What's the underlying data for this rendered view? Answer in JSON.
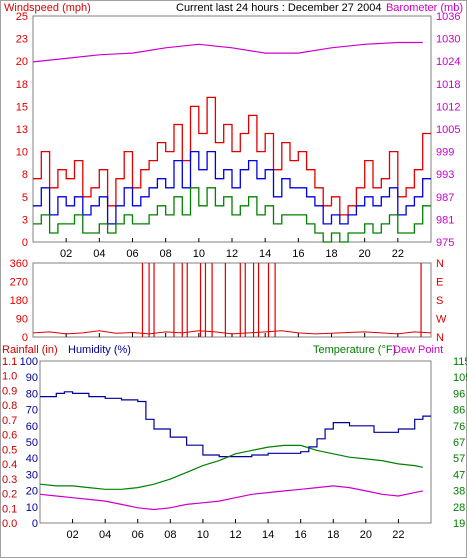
{
  "colors": {
    "windspeed": "#e00000",
    "gust": "#0000e0",
    "avg_wind": "#008000",
    "barometer": "#cc00cc",
    "direction": "#e00000",
    "rainfall": "#cc0000",
    "humidity": "#000099",
    "temperature": "#008000",
    "dew_point": "#cc00cc",
    "panel_bg": "#ffffff",
    "axis": "#000000",
    "frame": "#808080"
  },
  "chart_data": [
    {
      "type": "line",
      "title": "Current last 24 hours : December 27 2004",
      "ylabel_left": "Windspeed (mph)",
      "ylabel_right": "Barometer (mb)",
      "x_ticks": [
        "02",
        "04",
        "06",
        "08",
        "10",
        "12",
        "14",
        "16",
        "18",
        "20",
        "22"
      ],
      "xlim": [
        0,
        24
      ],
      "ylim_left": [
        0,
        25
      ],
      "ylim_right": [
        975,
        1039
      ],
      "y_ticks_left": [
        "0",
        "3",
        "5",
        "8",
        "10",
        "13",
        "15",
        "18",
        "20",
        "23",
        "25"
      ],
      "y_ticks_right": [
        "975",
        "981",
        "987",
        "993",
        "999",
        "1005",
        "1012",
        "1018",
        "1024",
        "1030",
        "1036"
      ],
      "series": [
        {
          "key": "windspeed",
          "x": [
            0,
            0.5,
            1,
            1.5,
            2,
            2.5,
            3,
            3.5,
            4,
            4.5,
            5,
            5.5,
            6,
            6.5,
            7,
            7.5,
            8,
            8.5,
            9,
            9.5,
            10,
            10.5,
            11,
            11.5,
            12,
            12.5,
            13,
            13.5,
            14,
            14.5,
            15,
            15.5,
            16,
            16.5,
            17,
            17.5,
            18,
            18.5,
            19,
            19.5,
            20,
            20.5,
            21,
            21.5,
            22,
            22.5,
            23,
            23.5
          ],
          "values": [
            7,
            10,
            6,
            8,
            7,
            9,
            5,
            6,
            8,
            4,
            7,
            10,
            6,
            8,
            9,
            11,
            10,
            13,
            9,
            15,
            12,
            16,
            11,
            13,
            10,
            12,
            14,
            10,
            12,
            8,
            11,
            9,
            10,
            8,
            6,
            4,
            5,
            3,
            4,
            6,
            9,
            6,
            7,
            10,
            5,
            6,
            8,
            12
          ]
        },
        {
          "key": "gust",
          "x": [
            0,
            0.5,
            1,
            1.5,
            2,
            2.5,
            3,
            3.5,
            4,
            4.5,
            5,
            5.5,
            6,
            6.5,
            7,
            7.5,
            8,
            8.5,
            9,
            9.5,
            10,
            10.5,
            11,
            11.5,
            12,
            12.5,
            13,
            13.5,
            14,
            14.5,
            15,
            15.5,
            16,
            16.5,
            17,
            17.5,
            18,
            18.5,
            19,
            19.5,
            20,
            20.5,
            21,
            21.5,
            22,
            22.5,
            23,
            23.5
          ],
          "values": [
            4,
            6,
            3,
            5,
            4,
            5,
            3,
            4,
            5,
            2,
            4,
            6,
            4,
            5,
            6,
            7,
            6,
            9,
            6,
            10,
            8,
            10,
            7,
            8,
            6,
            8,
            9,
            7,
            8,
            5,
            7,
            6,
            6,
            5,
            4,
            2,
            3,
            2,
            3,
            4,
            5,
            4,
            5,
            6,
            3,
            4,
            5,
            7
          ]
        },
        {
          "key": "avg_wind",
          "x": [
            0,
            0.5,
            1,
            1.5,
            2,
            2.5,
            3,
            3.5,
            4,
            4.5,
            5,
            5.5,
            6,
            6.5,
            7,
            7.5,
            8,
            8.5,
            9,
            9.5,
            10,
            10.5,
            11,
            11.5,
            12,
            12.5,
            13,
            13.5,
            14,
            14.5,
            15,
            15.5,
            16,
            16.5,
            17,
            17.5,
            18,
            18.5,
            19,
            19.5,
            20,
            20.5,
            21,
            21.5,
            22,
            22.5,
            23,
            23.5
          ],
          "values": [
            2,
            3,
            1,
            2,
            2,
            3,
            1,
            1,
            2,
            1,
            2,
            3,
            2,
            2,
            3,
            4,
            3,
            5,
            3,
            6,
            4,
            6,
            4,
            5,
            3,
            4,
            5,
            3,
            4,
            2,
            3,
            3,
            3,
            2,
            1,
            0,
            1,
            0,
            1,
            1,
            2,
            1,
            2,
            3,
            1,
            1,
            2,
            4
          ]
        },
        {
          "key": "barometer",
          "x": [
            0,
            2,
            4,
            6,
            8,
            10,
            12,
            14,
            16,
            18,
            20,
            22,
            23.5
          ],
          "values": [
            1026,
            1027,
            1028,
            1028.5,
            1030,
            1031,
            1030,
            1028.5,
            1028.5,
            1030,
            1031,
            1031.5,
            1031.5
          ]
        }
      ]
    },
    {
      "type": "bar",
      "ylabel_left": "",
      "x_ticks": [
        "02",
        "04",
        "06",
        "08",
        "10",
        "12",
        "14",
        "16",
        "18",
        "20",
        "22"
      ],
      "xlim": [
        0,
        24
      ],
      "ylim": [
        0,
        360
      ],
      "y_ticks_left": [
        "0",
        "90",
        "180",
        "270",
        "360"
      ],
      "y_ticks_right": [
        "N",
        "W",
        "S",
        "E",
        "N"
      ],
      "series": [
        {
          "key": "direction",
          "x": [
            6.6,
            7.0,
            7.3,
            8.5,
            9.0,
            9.3,
            10.1,
            10.4,
            10.8,
            11.6,
            12.5,
            12.8,
            13.3,
            13.6,
            14.2,
            14.6,
            23.4
          ],
          "values": [
            360,
            360,
            360,
            360,
            360,
            360,
            360,
            360,
            360,
            360,
            360,
            360,
            360,
            360,
            360,
            360,
            360
          ]
        },
        {
          "key": "direction_baseline",
          "x": [
            0,
            1,
            2,
            3,
            4,
            5,
            6,
            7,
            8,
            9,
            10,
            11,
            12,
            13,
            14,
            15,
            16,
            17,
            18,
            19,
            20,
            21,
            22,
            23,
            24
          ],
          "values": [
            20,
            25,
            15,
            20,
            30,
            18,
            22,
            15,
            25,
            20,
            30,
            25,
            15,
            20,
            25,
            30,
            20,
            15,
            18,
            22,
            25,
            20,
            15,
            25,
            20
          ]
        }
      ]
    },
    {
      "type": "line",
      "ylabel_left": "Rainfall (in)",
      "ylabel_left2": "Humidity (%)",
      "ylabel_right": "Temperature (°F)",
      "ylabel_right2": "Dew Point",
      "x_ticks": [
        "02",
        "04",
        "06",
        "08",
        "10",
        "12",
        "14",
        "16",
        "18",
        "20",
        "22"
      ],
      "xlim": [
        0,
        24
      ],
      "ylim_humidity": [
        0,
        100
      ],
      "ylim_temperature": [
        19,
        115
      ],
      "y_ticks_rain": [
        "0.0",
        "0.1",
        "0.2",
        "0.3",
        "0.4",
        "0.5",
        "0.6",
        "0.7",
        "0.8",
        "0.9",
        "1.0",
        "1.1"
      ],
      "y_ticks_humidity": [
        "0",
        "10",
        "20",
        "30",
        "40",
        "50",
        "60",
        "70",
        "80",
        "90",
        "100"
      ],
      "y_ticks_temperature": [
        "19",
        "28",
        "38",
        "47",
        "57",
        "67",
        "76",
        "86",
        "96",
        "105",
        "115"
      ],
      "series": [
        {
          "key": "humidity",
          "x": [
            0,
            1,
            1.5,
            2,
            3,
            4,
            5,
            6,
            6.5,
            7,
            8,
            9,
            10,
            11,
            12,
            13,
            14,
            15,
            16,
            16.5,
            17,
            17.5,
            18,
            19,
            20,
            20.5,
            21,
            22,
            23,
            23.5
          ],
          "values": [
            78,
            80,
            81,
            80,
            78,
            77,
            76,
            75,
            64,
            58,
            53,
            48,
            42,
            41,
            41,
            42,
            43,
            43,
            44,
            47,
            52,
            58,
            62,
            60,
            60,
            56,
            56,
            58,
            64,
            66
          ]
        },
        {
          "key": "temperature",
          "x": [
            0,
            1,
            2,
            3,
            4,
            5,
            6,
            7,
            8,
            9,
            10,
            11,
            12,
            13,
            14,
            15,
            16,
            17,
            18,
            19,
            20,
            21,
            22,
            23,
            23.5
          ],
          "values": [
            42,
            41,
            41,
            40,
            39,
            39,
            40,
            42,
            45,
            49,
            53,
            56,
            60,
            62,
            64,
            65,
            65,
            62,
            60,
            58,
            57,
            56,
            54,
            53,
            52
          ]
        },
        {
          "key": "dew_point",
          "x": [
            0,
            1,
            2,
            3,
            4,
            5,
            6,
            7,
            8,
            9,
            10,
            11,
            12,
            13,
            14,
            15,
            16,
            17,
            18,
            19,
            20,
            21,
            22,
            23,
            23.5
          ],
          "values": [
            36,
            35,
            34,
            33,
            32,
            30,
            28,
            27,
            28,
            30,
            31,
            32,
            34,
            36,
            37,
            38,
            39,
            40,
            41,
            40,
            38,
            36,
            35,
            37,
            38
          ]
        }
      ]
    }
  ]
}
